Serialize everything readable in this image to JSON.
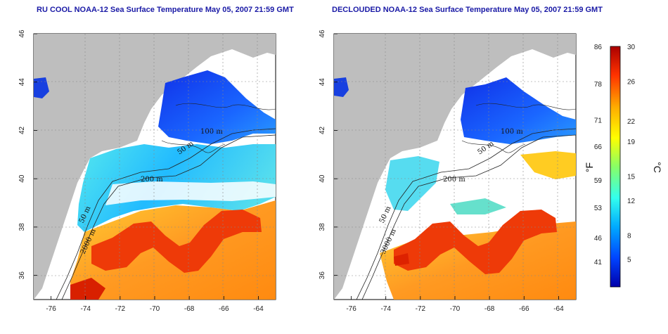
{
  "panels": [
    {
      "title": "RU COOL NOAA-12 Sea Surface Temperature May 05, 2007 21:59 GMT",
      "contour_labels": [
        "100 m",
        "50 m",
        "200 m",
        "50 m",
        "2000 m"
      ]
    },
    {
      "title": "DECLOUDED NOAA-12 Sea Surface Temperature May 05, 2007 21:59 GMT",
      "contour_labels": [
        "100 m",
        "50 m",
        "200 m",
        "50 m",
        "3000 m"
      ]
    }
  ],
  "axes": {
    "lon_ticks": [
      "-76",
      "-74",
      "-72",
      "-70",
      "-68",
      "-66",
      "-64"
    ],
    "lat_ticks": [
      "46",
      "44",
      "42",
      "40",
      "38",
      "36"
    ],
    "lon_range": [
      -77,
      -63
    ],
    "lat_range": [
      35,
      46
    ]
  },
  "colorbar": {
    "fahrenheit_ticks": [
      "86",
      "78",
      "71",
      "66",
      "59",
      "53",
      "46",
      "41"
    ],
    "celsius_ticks": [
      "30",
      "26",
      "22",
      "19",
      "15",
      "12",
      "8",
      "5"
    ],
    "fahrenheit_unit": "°F",
    "celsius_unit": "°C",
    "colors": [
      "#0000aa",
      "#0044ff",
      "#00aaff",
      "#33ffee",
      "#88ff66",
      "#ffff00",
      "#ffaa00",
      "#ff3300",
      "#aa0000"
    ]
  },
  "colors": {
    "land": "#bebebe",
    "cloud": "#ffffff",
    "cold_water": "#1040e0",
    "shelf_water": "#33ccff",
    "gulf_stream": "#ee3300",
    "warm_water": "#ff8800",
    "title": "#1a1aa6"
  }
}
